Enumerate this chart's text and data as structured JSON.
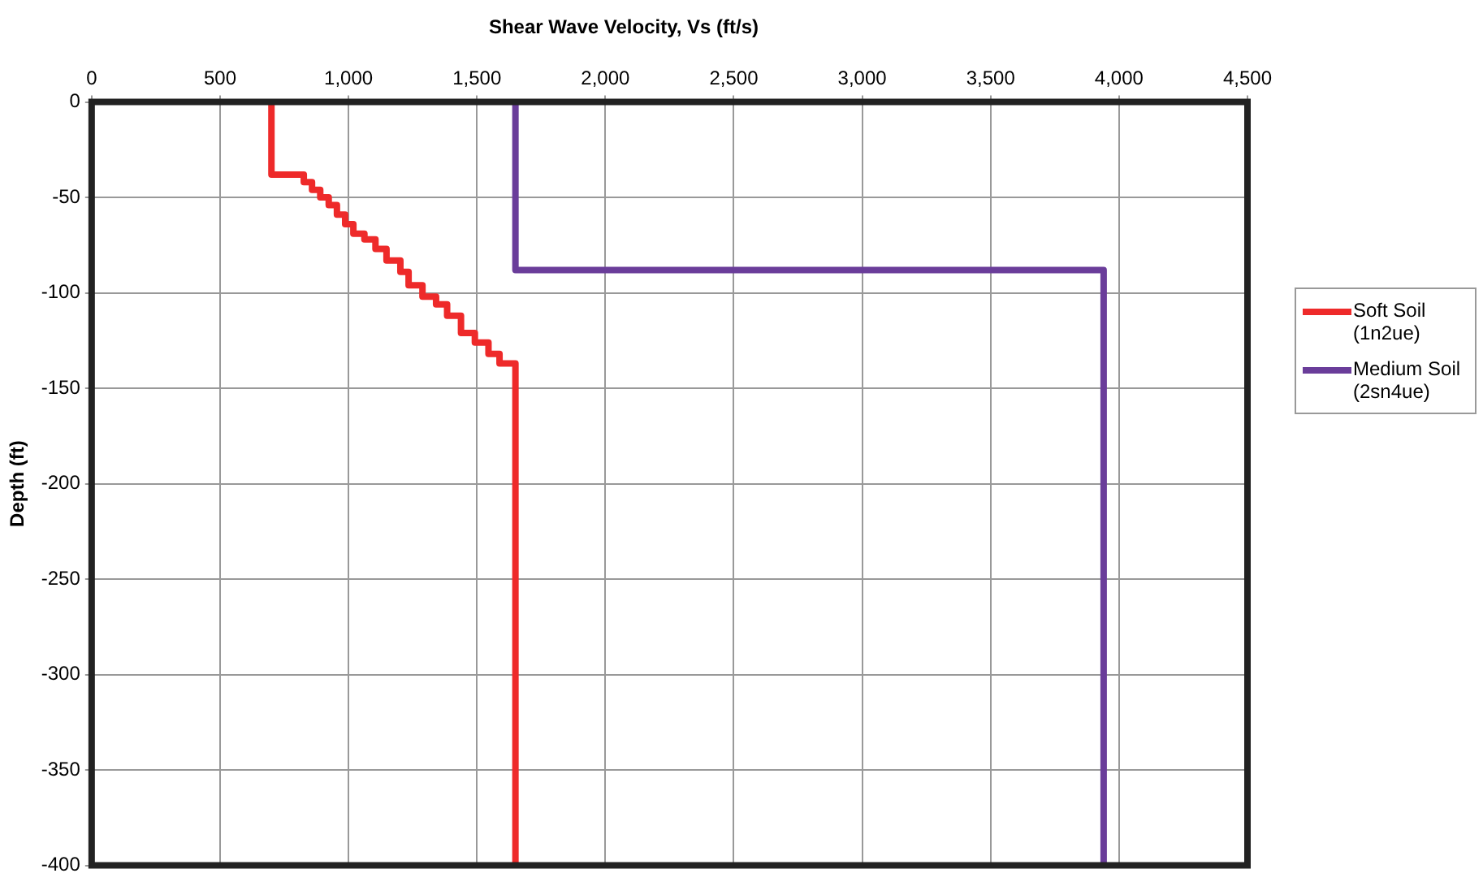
{
  "chart_data": {
    "type": "step",
    "title": "Shear Wave Velocity, Vs (ft/s)",
    "ylabel": "Depth (ft)",
    "series": [
      {
        "name": "Soft Soil (1n2ue)",
        "color": "#ee2a2a",
        "x": [
          700,
          826,
          858,
          890,
          923,
          955,
          987,
          1019,
          1062,
          1105,
          1148,
          1202,
          1234,
          1288,
          1341,
          1384,
          1438,
          1492,
          1545,
          1588,
          1650,
          1650
        ],
        "values": [
          0,
          -38,
          -42,
          -46,
          -50,
          -54,
          -59,
          -64,
          -69,
          -72,
          -77,
          -83,
          -89,
          -96,
          -102,
          -106,
          -112,
          -121,
          -126,
          -132,
          -137,
          -400
        ]
      },
      {
        "name": "Medium Soil (2sn4ue)",
        "color": "#6a3d9a",
        "x": [
          1650,
          3940,
          3940
        ],
        "values": [
          0,
          -88,
          -400
        ]
      }
    ],
    "xlim": [
      0,
      4500
    ],
    "xticks": [
      0,
      500,
      {
        "value": 1000,
        "label": "1,000"
      },
      {
        "value": 1500,
        "label": "1,500"
      },
      {
        "value": 2000,
        "label": "2,000"
      },
      {
        "value": 2500,
        "label": "2,500"
      },
      {
        "value": 3000,
        "label": "3,000"
      },
      {
        "value": 3500,
        "label": "3,500"
      },
      {
        "value": 4000,
        "label": "4,000"
      },
      {
        "value": 4500,
        "label": "4,500"
      }
    ],
    "ylim": [
      -400,
      0
    ],
    "yticks": [
      0,
      -50,
      -100,
      -150,
      -200,
      -250,
      -300,
      -350,
      -400
    ],
    "grid": true,
    "legend": "right",
    "line_style": "solid",
    "marker": "none"
  }
}
